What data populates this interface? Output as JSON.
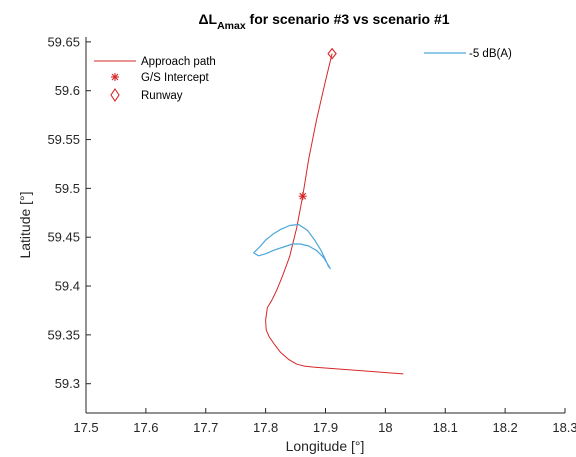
{
  "chart_data": {
    "type": "line",
    "title": {
      "prefix": "ΔL",
      "subscript": "Amax",
      "suffix": " for scenario #3 vs scenario #1"
    },
    "xlabel": "Longitude [°]",
    "ylabel": "Latitude [°]",
    "xlim": [
      17.5,
      18.3
    ],
    "ylim": [
      59.27,
      59.655
    ],
    "xticks": [
      17.5,
      17.6,
      17.7,
      17.8,
      17.9,
      18.0,
      18.1,
      18.2,
      18.3
    ],
    "xtick_labels": [
      "17.5",
      "17.6",
      "17.7",
      "17.8",
      "17.9",
      "18",
      "18.1",
      "18.2",
      "18.3"
    ],
    "yticks": [
      59.3,
      59.35,
      59.4,
      59.45,
      59.5,
      59.55,
      59.6,
      59.65
    ],
    "ytick_labels": [
      "59.3",
      "59.35",
      "59.4",
      "59.45",
      "59.5",
      "59.55",
      "59.6",
      "59.65"
    ],
    "grid": false,
    "colors": {
      "path": "#d62728",
      "contour": "#4da6d9"
    },
    "series": [
      {
        "name": "Approach path",
        "kind": "line",
        "x": [
          17.911,
          17.9,
          17.885,
          17.872,
          17.862,
          17.852,
          17.84,
          17.828,
          17.818,
          17.81,
          17.803,
          17.8,
          17.801,
          17.806,
          17.815,
          17.825,
          17.838,
          17.852,
          17.865,
          17.88,
          18.03
        ],
        "y": [
          59.638,
          59.61,
          59.57,
          59.53,
          59.492,
          59.46,
          59.43,
          59.41,
          59.395,
          59.385,
          59.378,
          59.365,
          59.355,
          59.348,
          59.34,
          59.332,
          59.325,
          59.32,
          59.318,
          59.317,
          59.31
        ]
      },
      {
        "name": "G/S Intercept",
        "kind": "marker",
        "marker": "asterisk",
        "x": [
          17.862
        ],
        "y": [
          59.492
        ]
      },
      {
        "name": "Runway",
        "kind": "marker",
        "marker": "diamond",
        "x": [
          17.911
        ],
        "y": [
          59.638
        ]
      },
      {
        "name": "-5 dB(A)",
        "kind": "contour",
        "x": [
          17.78,
          17.79,
          17.8,
          17.812,
          17.825,
          17.84,
          17.855,
          17.87,
          17.882,
          17.892,
          17.9,
          17.905,
          17.908,
          17.905,
          17.897,
          17.886,
          17.872,
          17.858,
          17.845,
          17.83,
          17.815,
          17.8,
          17.788,
          17.78
        ],
        "y": [
          59.434,
          59.44,
          59.447,
          59.453,
          59.458,
          59.462,
          59.463,
          59.457,
          59.447,
          59.437,
          59.427,
          59.42,
          59.418,
          59.421,
          59.429,
          59.436,
          59.441,
          59.443,
          59.443,
          59.44,
          59.437,
          59.433,
          59.431,
          59.434
        ]
      }
    ],
    "legends": [
      {
        "position": "top-left",
        "entries": [
          "Approach path",
          "G/S Intercept",
          "Runway"
        ]
      },
      {
        "position": "top-right",
        "entries": [
          "-5 dB(A)"
        ]
      }
    ]
  }
}
